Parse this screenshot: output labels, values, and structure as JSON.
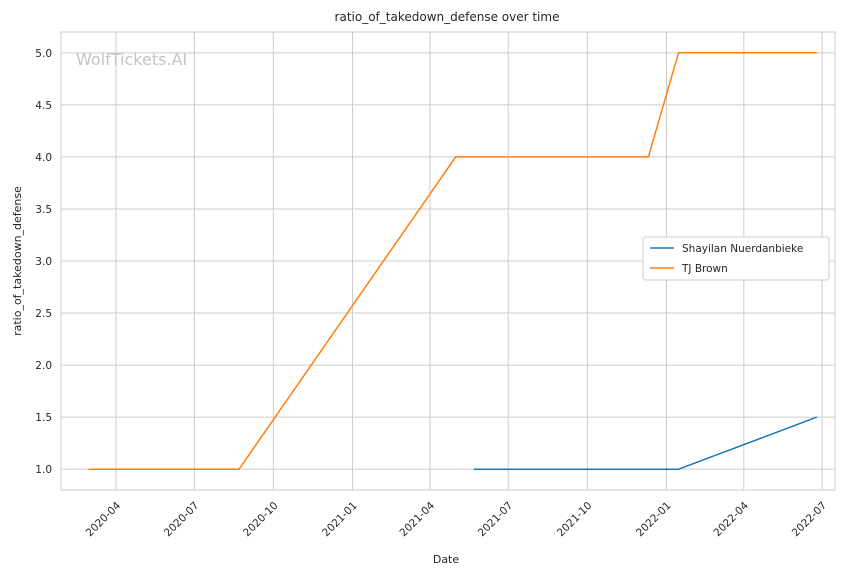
{
  "watermark": "WolfTickets.AI",
  "chart_data": {
    "type": "line",
    "title": "ratio_of_takedown_defense over time",
    "xlabel": "Date",
    "ylabel": "ratio_of_takedown_defense",
    "xlim": [
      "2020-01-28",
      "2022-07-16"
    ],
    "ylim": [
      0.8,
      5.2
    ],
    "x_ticks": [
      "2020-04",
      "2020-07",
      "2020-10",
      "2021-01",
      "2021-04",
      "2021-07",
      "2021-10",
      "2022-01",
      "2022-04",
      "2022-07"
    ],
    "y_ticks": [
      "1.0",
      "1.5",
      "2.0",
      "2.5",
      "3.0",
      "3.5",
      "4.0",
      "4.5",
      "5.0"
    ],
    "grid": true,
    "legend_position": "center-right",
    "series": [
      {
        "name": "Shayilan Nuerdanbieke",
        "color": "#1f77b4",
        "points": [
          {
            "x": "2021-05-22",
            "y": 1.0
          },
          {
            "x": "2022-01-15",
            "y": 1.0
          },
          {
            "x": "2022-06-25",
            "y": 1.5
          }
        ]
      },
      {
        "name": "TJ Brown",
        "color": "#ff7f0e",
        "points": [
          {
            "x": "2020-02-29",
            "y": 1.0
          },
          {
            "x": "2020-08-22",
            "y": 1.0
          },
          {
            "x": "2021-05-01",
            "y": 4.0
          },
          {
            "x": "2021-12-11",
            "y": 4.0
          },
          {
            "x": "2022-01-15",
            "y": 5.0
          },
          {
            "x": "2022-06-25",
            "y": 5.0
          }
        ]
      }
    ]
  }
}
